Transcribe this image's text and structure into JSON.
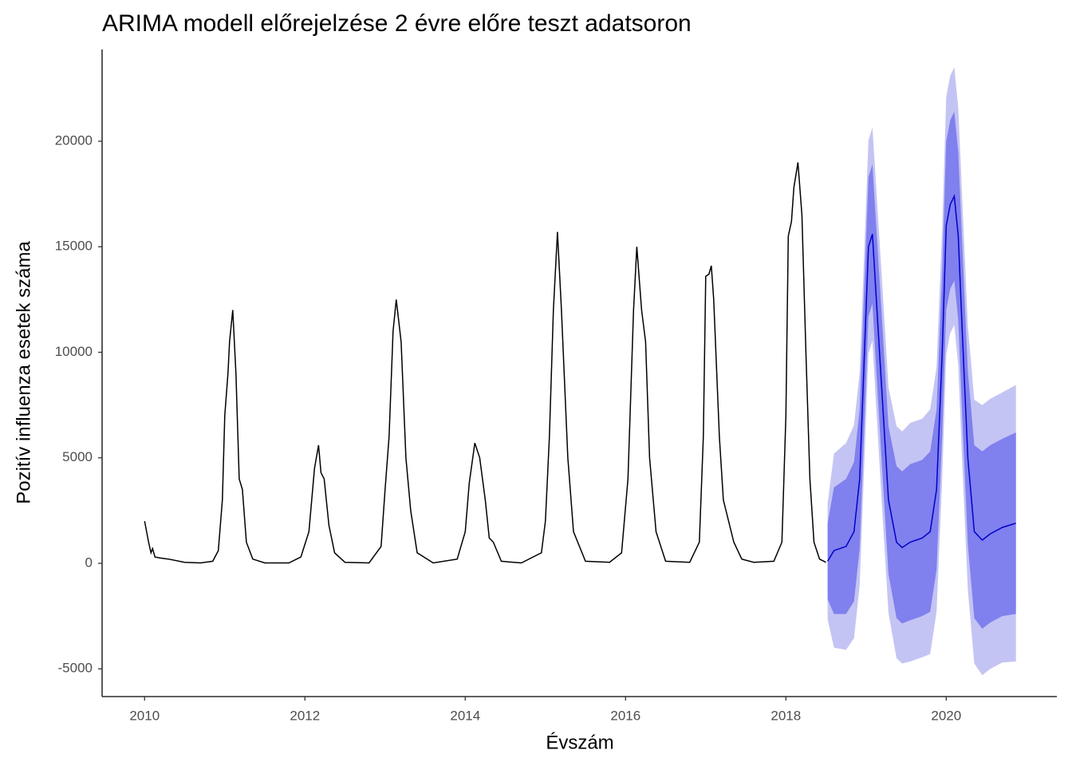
{
  "chart_data": {
    "type": "forecast",
    "title": "ARIMA modell előrejelzése 2 évre előre teszt adatsoron",
    "x_label": "Évszám",
    "y_label": "Pozitív influenza esetek száma",
    "xlim": [
      2009.47,
      2021.38
    ],
    "ylim": [
      -6314,
      24348
    ],
    "xticks": [
      2010,
      2012,
      2014,
      2016,
      2018,
      2020
    ],
    "yticks": [
      -5000,
      0,
      5000,
      10000,
      15000,
      20000
    ],
    "observed": {
      "color": "#000000",
      "x": [
        2010.0,
        2010.05,
        2010.08,
        2010.1,
        2010.13,
        2010.2,
        2010.3,
        2010.5,
        2010.7,
        2010.85,
        2010.92,
        2010.97,
        2011.0,
        2011.04,
        2011.06,
        2011.1,
        2011.14,
        2011.18,
        2011.22,
        2011.27,
        2011.35,
        2011.5,
        2011.8,
        2011.95,
        2012.05,
        2012.12,
        2012.17,
        2012.2,
        2012.24,
        2012.3,
        2012.37,
        2012.5,
        2012.8,
        2012.95,
        2013.0,
        2013.05,
        2013.1,
        2013.14,
        2013.2,
        2013.26,
        2013.32,
        2013.4,
        2013.6,
        2013.9,
        2014.0,
        2014.05,
        2014.12,
        2014.18,
        2014.25,
        2014.3,
        2014.35,
        2014.45,
        2014.7,
        2014.95,
        2015.0,
        2015.05,
        2015.1,
        2015.15,
        2015.2,
        2015.28,
        2015.35,
        2015.5,
        2015.8,
        2015.95,
        2016.03,
        2016.1,
        2016.14,
        2016.2,
        2016.25,
        2016.3,
        2016.38,
        2016.5,
        2016.8,
        2016.92,
        2016.97,
        2017.0,
        2017.04,
        2017.07,
        2017.1,
        2017.17,
        2017.22,
        2017.35,
        2017.45,
        2017.6,
        2017.85,
        2017.95,
        2018.0,
        2018.03,
        2018.07,
        2018.1,
        2018.15,
        2018.2,
        2018.25,
        2018.3,
        2018.35,
        2018.42,
        2018.5
      ],
      "values": [
        2000,
        1000,
        500,
        700,
        300,
        250,
        200,
        50,
        20,
        100,
        600,
        3000,
        7000,
        9000,
        10500,
        12000,
        9000,
        4000,
        3500,
        1000,
        200,
        20,
        20,
        300,
        1500,
        4500,
        5600,
        4300,
        4000,
        1800,
        500,
        50,
        20,
        800,
        3500,
        6000,
        11000,
        12500,
        10500,
        5000,
        2500,
        500,
        20,
        200,
        1500,
        3800,
        5700,
        5000,
        3000,
        1200,
        1000,
        100,
        20,
        500,
        2000,
        6000,
        12000,
        15700,
        12000,
        5000,
        1500,
        100,
        50,
        500,
        4000,
        12000,
        15000,
        12000,
        10500,
        5000,
        1500,
        100,
        50,
        1000,
        6000,
        13600,
        13700,
        14100,
        12500,
        6000,
        3000,
        1000,
        200,
        50,
        100,
        1000,
        7000,
        15500,
        16200,
        17800,
        19000,
        16500,
        10000,
        4000,
        1000,
        200,
        50
      ]
    },
    "forecast": {
      "mean_color": "#0000cc",
      "band80_color": "#8080ee",
      "band95_color": "#c4c4f4",
      "x": [
        2018.52,
        2018.6,
        2018.75,
        2018.85,
        2018.92,
        2018.98,
        2019.03,
        2019.08,
        2019.12,
        2019.2,
        2019.28,
        2019.38,
        2019.45,
        2019.55,
        2019.7,
        2019.8,
        2019.88,
        2019.95,
        2020.0,
        2020.05,
        2020.1,
        2020.15,
        2020.2,
        2020.27,
        2020.35,
        2020.45,
        2020.55,
        2020.7,
        2020.87
      ],
      "mean": [
        100,
        600,
        800,
        1500,
        4000,
        10000,
        15000,
        15600,
        13000,
        8000,
        3000,
        1000,
        750,
        1000,
        1200,
        1500,
        3500,
        10000,
        16000,
        17000,
        17400,
        15500,
        11000,
        5000,
        1500,
        1100,
        1400,
        1700,
        1900
      ],
      "upper80": [
        1900,
        3600,
        4000,
        4800,
        7300,
        13300,
        18300,
        18900,
        16400,
        11500,
        6500,
        4600,
        4350,
        4700,
        4900,
        5300,
        7300,
        13900,
        20000,
        21000,
        21400,
        19500,
        15100,
        9100,
        5600,
        5300,
        5600,
        5900,
        6200
      ],
      "lower80": [
        -1700,
        -2400,
        -2400,
        -1800,
        700,
        6700,
        11700,
        12300,
        9600,
        4500,
        -500,
        -2600,
        -2850,
        -2700,
        -2500,
        -2300,
        -300,
        6100,
        12000,
        13000,
        13400,
        11500,
        6900,
        900,
        -2600,
        -3100,
        -2800,
        -2500,
        -2400
      ],
      "upper95": [
        2850,
        5200,
        5700,
        6550,
        9050,
        15050,
        20050,
        20650,
        18200,
        13350,
        8350,
        6500,
        6250,
        6650,
        6850,
        7300,
        9300,
        15950,
        22100,
        23100,
        23500,
        21600,
        17250,
        11250,
        7750,
        7500,
        7800,
        8100,
        8450
      ],
      "lower95": [
        -2650,
        -4000,
        -4100,
        -3550,
        -1050,
        4950,
        9950,
        10550,
        7800,
        2650,
        -2350,
        -4500,
        -4750,
        -4650,
        -4450,
        -4300,
        -2300,
        4050,
        9900,
        10900,
        11300,
        9400,
        4750,
        -1250,
        -4750,
        -5300,
        -5000,
        -4700,
        -4650
      ]
    }
  }
}
